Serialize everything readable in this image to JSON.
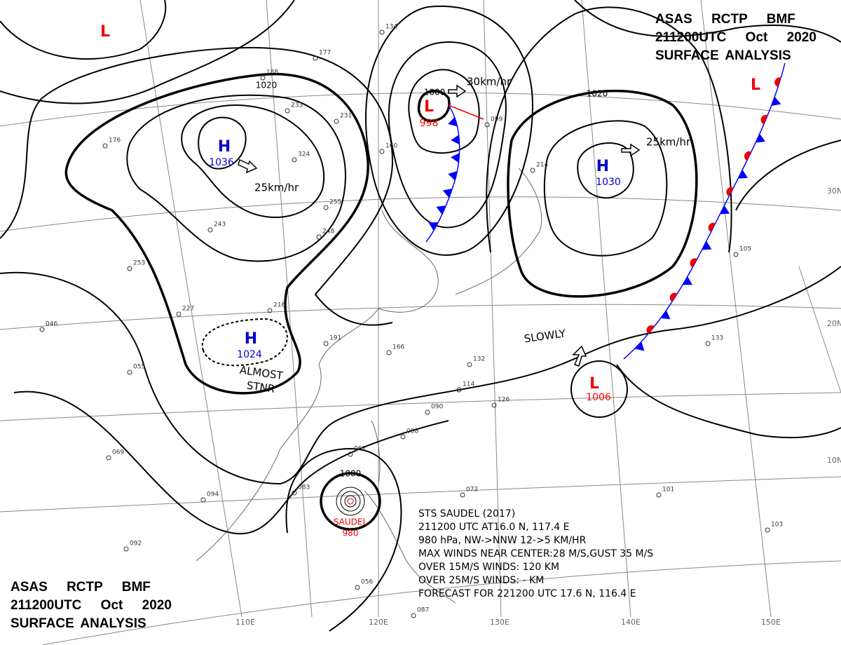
{
  "header_top": {
    "line1": "ASAS RCTP BMF",
    "line2": "211200UTC Oct 2020",
    "line3": "SURFACE ANALYSIS"
  },
  "header_bottom": {
    "line1": "ASAS RCTP BMF",
    "line2": "211200UTC Oct 2020",
    "line3": "SURFACE ANALYSIS"
  },
  "pressure_systems": [
    {
      "symbol": "H",
      "pressure": 1036
    },
    {
      "symbol": "H",
      "pressure": 1024
    },
    {
      "symbol": "H",
      "pressure": 1030
    },
    {
      "symbol": "L",
      "pressure": 998
    },
    {
      "symbol": "L",
      "pressure": 1006
    },
    {
      "symbol": "L"
    },
    {
      "symbol": "L"
    }
  ],
  "isobar_labels": [
    1020,
    1020,
    1000,
    1000
  ],
  "motions": [
    "25km/hr",
    "30km/hr",
    "25km/hr",
    "SLOWLY",
    "ALMOST",
    "STNR"
  ],
  "storm": {
    "name": "SAUDEL",
    "pressure": 980
  },
  "storm_info": [
    "STS SAUDEL (2017)",
    "211200 UTC AT16.0 N, 117.4 E",
    "980 hPa, NW->NNW 12->5 KM/HR",
    "MAX WINDS NEAR CENTER:28 M/S,GUST 35 M/S",
    "OVER 15M/S WINDS: 120 KM",
    "OVER 25M/S WINDS: - KM",
    "FORECAST FOR 221200 UTC 17.6 N, 116.4 E"
  ],
  "latitude_labels": [
    "30N",
    "20N",
    "10N"
  ],
  "longitude_labels": [
    "110E",
    "120E",
    "130E",
    "140E",
    "150E"
  ],
  "stations": [
    "134",
    "177",
    "188",
    "233",
    "231",
    "324",
    "255",
    "248",
    "243",
    "253",
    "227",
    "216",
    "191",
    "176",
    "166",
    "160",
    "132",
    "126",
    "114",
    "099",
    "214",
    "105",
    "133",
    "101",
    "103",
    "088",
    "090",
    "072",
    "067",
    "069",
    "046",
    "055",
    "094",
    "083",
    "092",
    "056",
    "087"
  ]
}
